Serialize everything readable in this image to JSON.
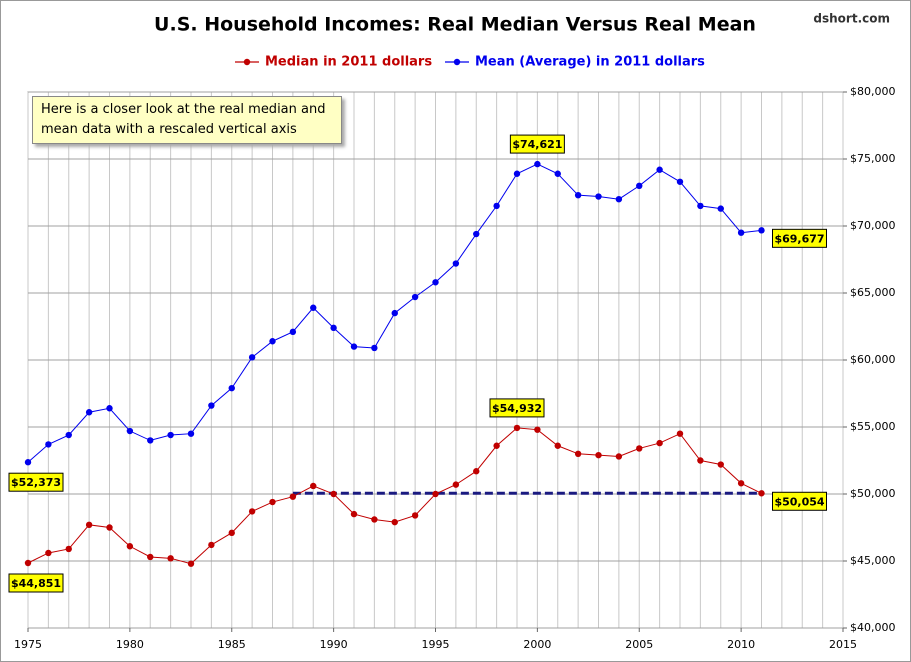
{
  "chart_data": {
    "type": "line",
    "title": "U.S. Household Incomes: Real Median Versus Real Mean",
    "source": "dshort.com",
    "annotation": "Here is a closer look at the real median and mean data with a rescaled vertical axis",
    "x": [
      1975,
      1976,
      1977,
      1978,
      1979,
      1980,
      1981,
      1982,
      1983,
      1984,
      1985,
      1986,
      1987,
      1988,
      1989,
      1990,
      1991,
      1992,
      1993,
      1994,
      1995,
      1996,
      1997,
      1998,
      1999,
      2000,
      2001,
      2002,
      2003,
      2004,
      2005,
      2006,
      2007,
      2008,
      2009,
      2010,
      2011
    ],
    "series": [
      {
        "name": "Median in 2011 dollars",
        "color": "#c00000",
        "values": [
          44851,
          45600,
          45900,
          47700,
          47500,
          46100,
          45300,
          45200,
          44800,
          46200,
          47100,
          48700,
          49400,
          49800,
          50600,
          50000,
          48500,
          48100,
          47900,
          48400,
          50000,
          50700,
          51700,
          53600,
          54932,
          54800,
          53600,
          53000,
          52900,
          52800,
          53400,
          53800,
          54500,
          52500,
          52200,
          50800,
          50054
        ],
        "value_labels": [
          "$44,851",
          null,
          null,
          null,
          null,
          null,
          null,
          null,
          null,
          null,
          null,
          null,
          null,
          null,
          null,
          null,
          null,
          null,
          null,
          null,
          null,
          null,
          null,
          null,
          "$54,932",
          null,
          null,
          null,
          null,
          null,
          null,
          null,
          null,
          null,
          null,
          null,
          "$50,054"
        ]
      },
      {
        "name": "Mean (Average) in 2011 dollars",
        "color": "#0000ee",
        "values": [
          52373,
          53700,
          54400,
          56100,
          56400,
          54700,
          54000,
          54400,
          54500,
          56600,
          57900,
          60200,
          61400,
          62100,
          63900,
          62400,
          61000,
          60900,
          63500,
          64700,
          65800,
          67200,
          69400,
          71500,
          73900,
          74621,
          73900,
          72300,
          72200,
          72000,
          73000,
          74200,
          73300,
          71500,
          71300,
          69500,
          69677
        ],
        "value_labels": [
          "$52,373",
          null,
          null,
          null,
          null,
          null,
          null,
          null,
          null,
          null,
          null,
          null,
          null,
          null,
          null,
          null,
          null,
          null,
          null,
          null,
          null,
          null,
          null,
          null,
          null,
          "$74,621",
          null,
          null,
          null,
          null,
          null,
          null,
          null,
          null,
          null,
          null,
          "$69,677"
        ]
      }
    ],
    "reference_line": {
      "y": 50054,
      "x": [
        1988,
        2011
      ],
      "color": "#1a1a80",
      "dashed": true
    },
    "xlim": [
      1975,
      2015
    ],
    "xticks": [
      1975,
      1980,
      1985,
      1990,
      1995,
      2000,
      2005,
      2010,
      2015
    ],
    "ylim": [
      40000,
      80000
    ],
    "yticks": [
      {
        "value": 40000,
        "label": "$40,000"
      },
      {
        "value": 45000,
        "label": "$45,000"
      },
      {
        "value": 50000,
        "label": "$50,000"
      },
      {
        "value": 55000,
        "label": "$55,000"
      },
      {
        "value": 60000,
        "label": "$60,000"
      },
      {
        "value": 65000,
        "label": "$65,000"
      },
      {
        "value": 70000,
        "label": "$70,000"
      },
      {
        "value": 75000,
        "label": "$75,000"
      },
      {
        "value": 80000,
        "label": "$80,000"
      }
    ],
    "grid": true,
    "y_axis_side": "right"
  }
}
